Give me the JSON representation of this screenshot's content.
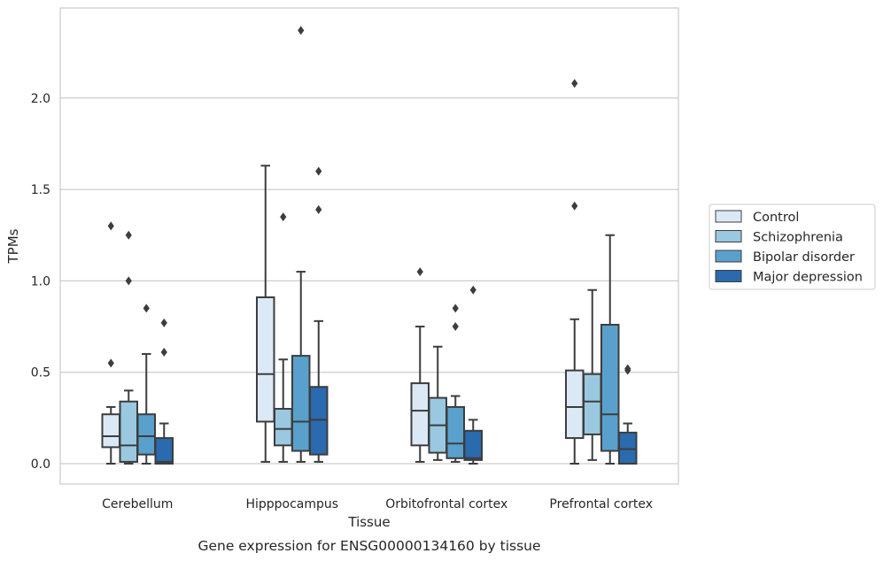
{
  "chart_data": {
    "type": "box",
    "title": "",
    "caption": "Gene expression for ENSG00000134160 by tissue",
    "xlabel": "Tissue",
    "ylabel": "TPMs",
    "ylim": [
      -0.115,
      2.49
    ],
    "yticks": [
      0.0,
      0.5,
      1.0,
      1.5,
      2.0
    ],
    "ytick_labels": [
      "0.0",
      "0.5",
      "1.0",
      "1.5",
      "2.0"
    ],
    "grid": "horizontal",
    "legend_position": "right",
    "categories": [
      "Cerebellum",
      "Hipppocampus",
      "Orbitofrontal cortex",
      "Prefrontal cortex"
    ],
    "series": [
      {
        "name": "Control",
        "color": "#dbe9f6",
        "boxes": [
          {
            "whislo": 0.0,
            "q1": 0.09,
            "med": 0.15,
            "q3": 0.27,
            "whishi": 0.31,
            "fliers": [
              0.55,
              1.3
            ]
          },
          {
            "whislo": 0.01,
            "q1": 0.23,
            "med": 0.49,
            "q3": 0.91,
            "whishi": 1.63,
            "fliers": []
          },
          {
            "whislo": 0.01,
            "q1": 0.1,
            "med": 0.29,
            "q3": 0.44,
            "whishi": 0.75,
            "fliers": [
              1.05
            ]
          },
          {
            "whislo": 0.0,
            "q1": 0.14,
            "med": 0.31,
            "q3": 0.51,
            "whishi": 0.79,
            "fliers": [
              1.41,
              2.08
            ]
          }
        ]
      },
      {
        "name": "Schizophrenia",
        "color": "#9ac8e0",
        "boxes": [
          {
            "whislo": 0.0,
            "q1": 0.01,
            "med": 0.1,
            "q3": 0.34,
            "whishi": 0.4,
            "fliers": [
              1.0,
              1.25
            ]
          },
          {
            "whislo": 0.01,
            "q1": 0.1,
            "med": 0.19,
            "q3": 0.3,
            "whishi": 0.57,
            "fliers": [
              1.35
            ]
          },
          {
            "whislo": 0.02,
            "q1": 0.06,
            "med": 0.21,
            "q3": 0.36,
            "whishi": 0.64,
            "fliers": []
          },
          {
            "whislo": 0.02,
            "q1": 0.16,
            "med": 0.34,
            "q3": 0.49,
            "whishi": 0.95,
            "fliers": []
          }
        ]
      },
      {
        "name": "Bipolar disorder",
        "color": "#5aa0cc",
        "boxes": [
          {
            "whislo": 0.0,
            "q1": 0.05,
            "med": 0.15,
            "q3": 0.27,
            "whishi": 0.6,
            "fliers": [
              0.85
            ]
          },
          {
            "whislo": 0.01,
            "q1": 0.07,
            "med": 0.23,
            "q3": 0.59,
            "whishi": 1.05,
            "fliers": [
              2.37
            ]
          },
          {
            "whislo": 0.01,
            "q1": 0.03,
            "med": 0.11,
            "q3": 0.31,
            "whishi": 0.37,
            "fliers": [
              0.75,
              0.85
            ]
          },
          {
            "whislo": 0.0,
            "q1": 0.07,
            "med": 0.27,
            "q3": 0.76,
            "whishi": 1.25,
            "fliers": []
          }
        ]
      },
      {
        "name": "Major depression",
        "color": "#2a6aae",
        "boxes": [
          {
            "whislo": 0.0,
            "q1": 0.0,
            "med": 0.01,
            "q3": 0.14,
            "whishi": 0.22,
            "fliers": [
              0.61,
              0.77
            ]
          },
          {
            "whislo": 0.01,
            "q1": 0.05,
            "med": 0.24,
            "q3": 0.42,
            "whishi": 0.78,
            "fliers": [
              1.39,
              1.6
            ]
          },
          {
            "whislo": 0.0,
            "q1": 0.02,
            "med": 0.03,
            "q3": 0.18,
            "whishi": 0.24,
            "fliers": [
              0.95
            ]
          },
          {
            "whislo": 0.0,
            "q1": 0.0,
            "med": 0.08,
            "q3": 0.17,
            "whishi": 0.22,
            "fliers": [
              0.51,
              0.52
            ]
          }
        ]
      }
    ]
  }
}
